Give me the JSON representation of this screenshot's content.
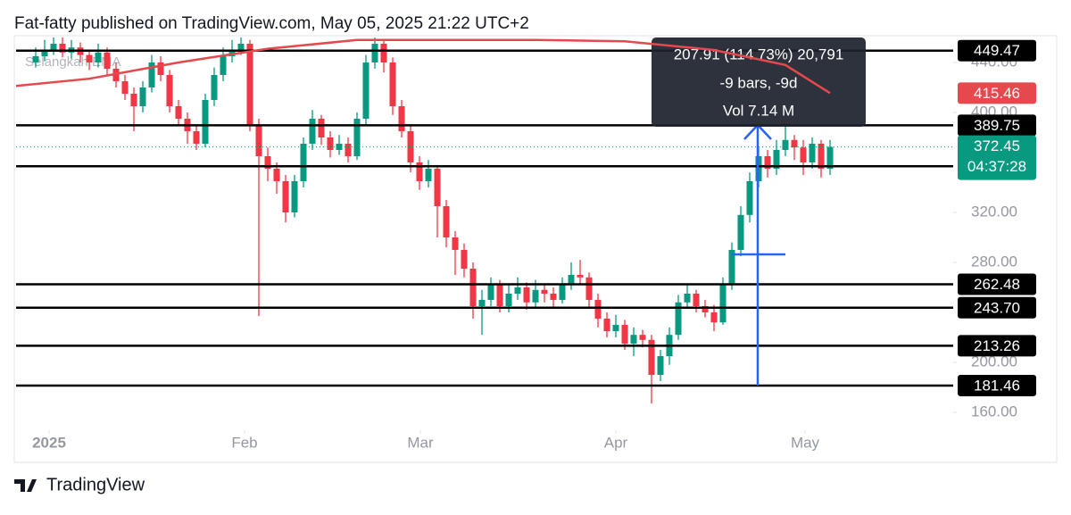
{
  "header": "Fat-fatty published on TradingView.com, May 05, 2025 21:22 UTC+2",
  "footer": "TradingView",
  "chart_data": {
    "type": "candlestick",
    "indicator": "Selangkah EMA",
    "up_color": "#089981",
    "down_color": "#f23645",
    "open": [
      440,
      445,
      450,
      455,
      448,
      452,
      446,
      440,
      448,
      435,
      425,
      415,
      405,
      420,
      440,
      430,
      405,
      395,
      385,
      375,
      410,
      430,
      445,
      450,
      455,
      390,
      365,
      355,
      345,
      320,
      345,
      375,
      395,
      380,
      370,
      375,
      365,
      395,
      440,
      455,
      440,
      405,
      385,
      360,
      345,
      355,
      325,
      300,
      290,
      275,
      245,
      250,
      262,
      245,
      255,
      260,
      248,
      258,
      255,
      250,
      262,
      270,
      268,
      250,
      235,
      225,
      230,
      215,
      222,
      218,
      190,
      205,
      222,
      248,
      255,
      245,
      240,
      232,
      262,
      290,
      318,
      345,
      365,
      355,
      370,
      378,
      372,
      360,
      375,
      355
    ],
    "high": [
      452,
      458,
      462,
      460,
      458,
      456,
      450,
      455,
      452,
      440,
      430,
      420,
      425,
      446,
      445,
      434,
      410,
      400,
      390,
      415,
      436,
      452,
      458,
      462,
      458,
      395,
      372,
      360,
      350,
      350,
      380,
      402,
      398,
      385,
      382,
      380,
      400,
      446,
      462,
      458,
      444,
      410,
      390,
      365,
      362,
      358,
      330,
      305,
      295,
      280,
      258,
      268,
      266,
      262,
      268,
      264,
      266,
      262,
      260,
      268,
      280,
      282,
      272,
      255,
      240,
      238,
      234,
      228,
      226,
      222,
      210,
      228,
      254,
      262,
      258,
      250,
      246,
      268,
      296,
      325,
      352,
      372,
      370,
      378,
      390,
      382,
      378,
      380,
      378,
      378
    ],
    "low": [
      436,
      441,
      446,
      444,
      443,
      440,
      434,
      436,
      430,
      420,
      410,
      385,
      400,
      416,
      425,
      400,
      390,
      375,
      370,
      372,
      405,
      425,
      440,
      446,
      385,
      237,
      345,
      335,
      312,
      316,
      340,
      370,
      374,
      364,
      366,
      360,
      362,
      390,
      435,
      432,
      398,
      380,
      352,
      338,
      340,
      300,
      292,
      270,
      268,
      235,
      222,
      245,
      240,
      240,
      250,
      242,
      244,
      248,
      244,
      247,
      258,
      262,
      244,
      228,
      220,
      220,
      210,
      205,
      212,
      167,
      185,
      198,
      218,
      244,
      240,
      236,
      225,
      230,
      258,
      285,
      312,
      340,
      348,
      350,
      365,
      362,
      350,
      355,
      348,
      350
    ],
    "close": [
      445,
      450,
      455,
      448,
      452,
      446,
      440,
      448,
      435,
      425,
      415,
      405,
      420,
      440,
      430,
      405,
      395,
      385,
      375,
      410,
      430,
      445,
      450,
      455,
      390,
      365,
      355,
      345,
      320,
      345,
      375,
      395,
      380,
      370,
      375,
      365,
      395,
      440,
      455,
      440,
      405,
      385,
      360,
      345,
      355,
      325,
      300,
      290,
      275,
      245,
      250,
      262,
      245,
      255,
      260,
      248,
      258,
      255,
      250,
      262,
      270,
      268,
      250,
      235,
      225,
      230,
      215,
      222,
      218,
      190,
      205,
      222,
      248,
      255,
      245,
      240,
      232,
      262,
      290,
      318,
      345,
      365,
      355,
      370,
      378,
      372,
      360,
      375,
      355,
      372.45
    ],
    "countdown": "04:37:28",
    "ma": {
      "color": "#e5484d",
      "x": [
        -4,
        6,
        16,
        26,
        36,
        46,
        56,
        66,
        76,
        84,
        89
      ],
      "values": [
        420,
        427,
        440,
        451,
        458,
        458,
        458,
        457,
        450,
        438,
        415.46
      ]
    },
    "levels": [
      449.47,
      389.75,
      356.92,
      262.48,
      {
        "value": 243.7,
        "label": "243.70"
      },
      213.26,
      181.46
    ],
    "xlim": [
      -2.2,
      102.8
    ],
    "ylim": [
      145.7,
      460
    ],
    "xticks": [
      {
        "value": 1.5,
        "label": "2025"
      },
      {
        "value": 23.4,
        "label": "Feb"
      },
      {
        "value": 43.1,
        "label": "Mar"
      },
      {
        "value": 65,
        "label": "Apr"
      },
      {
        "value": 86.2,
        "label": "May"
      }
    ],
    "yticks": [
      {
        "value": 440,
        "label": "440.00"
      },
      {
        "value": 400,
        "label": "400.00"
      },
      {
        "value": 320,
        "label": "320.00"
      },
      {
        "value": 280,
        "label": "280.00"
      },
      {
        "value": 200,
        "label": "200.00"
      },
      {
        "value": 160,
        "label": "160.00"
      }
    ],
    "measure": {
      "line1": "207.91 (114.73%) 20,791",
      "line2": "-9 bars, -9d",
      "line3": "Vol 7.14 M"
    }
  }
}
